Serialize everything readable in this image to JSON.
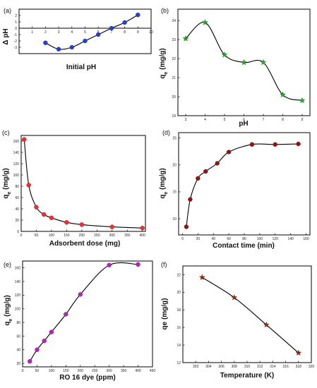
{
  "chart_data": [
    {
      "panel": "(a)",
      "type": "line",
      "marker": "circle",
      "marker_color": "#1f3fe0",
      "xlabel": "Initial pH",
      "ylabel": "Δ pH",
      "xlim": [
        0,
        10
      ],
      "ylim": [
        -4,
        3
      ],
      "xticks": [
        "1",
        "2",
        "3",
        "4",
        "5",
        "6",
        "7",
        "8",
        "9",
        "10"
      ],
      "yticks": [
        "-3",
        "-2",
        "-1",
        "0",
        "1",
        "2"
      ],
      "x": [
        2,
        3,
        4,
        5,
        6,
        7,
        8,
        9
      ],
      "y": [
        -2.3,
        -3.3,
        -3.0,
        -2.0,
        -1.0,
        0.0,
        0.9,
        2.1
      ]
    },
    {
      "panel": "(b)",
      "type": "line",
      "marker": "star",
      "marker_color": "#22aa22",
      "xlabel": "pH",
      "ylabel": "q",
      "ylabel_sub": "e",
      "ylabel_unit": " (mg/g)",
      "xlim": [
        2.6,
        9.4
      ],
      "ylim": [
        19,
        24.6
      ],
      "xticks": [
        "3",
        "4",
        "5",
        "6",
        "7",
        "8",
        "9"
      ],
      "yticks": [
        "19",
        "20",
        "21",
        "22",
        "23",
        "24"
      ],
      "x": [
        3,
        4,
        5,
        6,
        7,
        8,
        9
      ],
      "y": [
        23.05,
        23.9,
        22.2,
        21.8,
        21.8,
        20.1,
        19.8
      ]
    },
    {
      "panel": "(c)",
      "type": "line",
      "marker": "circle",
      "marker_color": "#ff2a2a",
      "xlabel": "Adsorbent dose (mg)",
      "ylabel": "q",
      "ylabel_sub": "e",
      "ylabel_unit": " (mg/g)",
      "xlim": [
        0,
        410
      ],
      "ylim": [
        0,
        170
      ],
      "xticks": [
        "0",
        "50",
        "100",
        "150",
        "200",
        "250",
        "300",
        "350",
        "400"
      ],
      "yticks": [
        "0",
        "20",
        "40",
        "60",
        "80",
        "100",
        "120",
        "140",
        "160"
      ],
      "x": [
        10,
        25,
        50,
        75,
        100,
        150,
        200,
        300,
        400
      ],
      "y": [
        163,
        82,
        43,
        30,
        24,
        16,
        12,
        8,
        6
      ]
    },
    {
      "panel": "(d)",
      "type": "line",
      "marker": "circle",
      "marker_color": "#9a1010",
      "xlabel": "Contact time (min)",
      "ylabel": "q",
      "ylabel_sub": "e",
      "ylabel_unit": " (mg/g)",
      "xlim": [
        -5,
        165
      ],
      "ylim": [
        7,
        26
      ],
      "xticks": [
        "0",
        "20",
        "40",
        "60",
        "80",
        "100",
        "120",
        "140",
        "160"
      ],
      "yticks": [
        "10",
        "15",
        "20",
        "25"
      ],
      "x": [
        5,
        10,
        20,
        30,
        45,
        60,
        90,
        120,
        150
      ],
      "y": [
        8.5,
        13.6,
        17.5,
        18.8,
        20.3,
        22.4,
        23.8,
        23.8,
        23.9
      ]
    },
    {
      "panel": "(e)",
      "type": "line",
      "marker": "circle",
      "marker_color": "#c21fc2",
      "xlabel": "RO 16 dye (ppm)",
      "ylabel": "q",
      "ylabel_sub": "e",
      "ylabel_unit": " (mg/g)",
      "xlim": [
        0,
        450
      ],
      "ylim": [
        15,
        170
      ],
      "xticks": [
        "0",
        "50",
        "100",
        "150",
        "200",
        "250",
        "300",
        "350",
        "400",
        "450"
      ],
      "yticks": [
        "20",
        "40",
        "60",
        "80",
        "100",
        "120",
        "140",
        "160"
      ],
      "x": [
        25,
        50,
        75,
        100,
        150,
        200,
        300,
        400
      ],
      "y": [
        23,
        40,
        53,
        66,
        92,
        121,
        164,
        165
      ]
    },
    {
      "panel": "(f)",
      "type": "line",
      "marker": "star",
      "marker_color": "#b01818",
      "xlabel": "Temperature (K)",
      "ylabel": "qe (mg/g)",
      "xlim": [
        300,
        320
      ],
      "ylim": [
        12,
        23
      ],
      "xticks": [
        "302",
        "304",
        "306",
        "308",
        "310",
        "312",
        "314",
        "316",
        "318",
        "320"
      ],
      "yticks": [
        "12",
        "14",
        "16",
        "18",
        "20",
        "22"
      ],
      "x": [
        303,
        308,
        313,
        318
      ],
      "y": [
        21.7,
        19.4,
        16.3,
        13.1
      ]
    }
  ]
}
